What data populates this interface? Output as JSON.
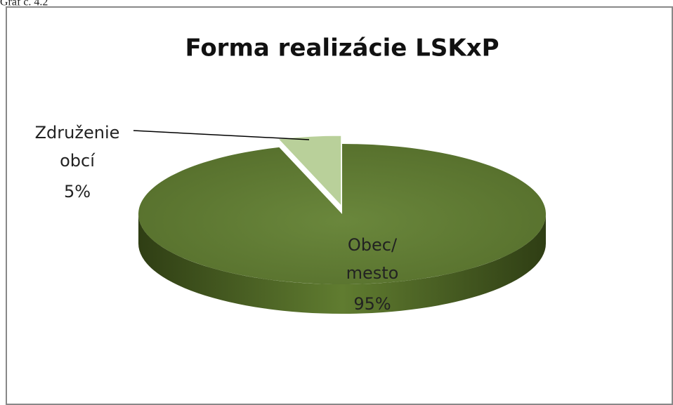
{
  "caption": "Graf č. 4.2",
  "chart_data": {
    "type": "pie",
    "title": "Forma realizácie LSKxP",
    "categories": [
      "Obec/ mesto",
      "Združenie obcí"
    ],
    "values": [
      95,
      5
    ],
    "value_labels": [
      "95%",
      "5%"
    ],
    "colors": [
      "#64803a",
      "#b9d09a"
    ]
  }
}
